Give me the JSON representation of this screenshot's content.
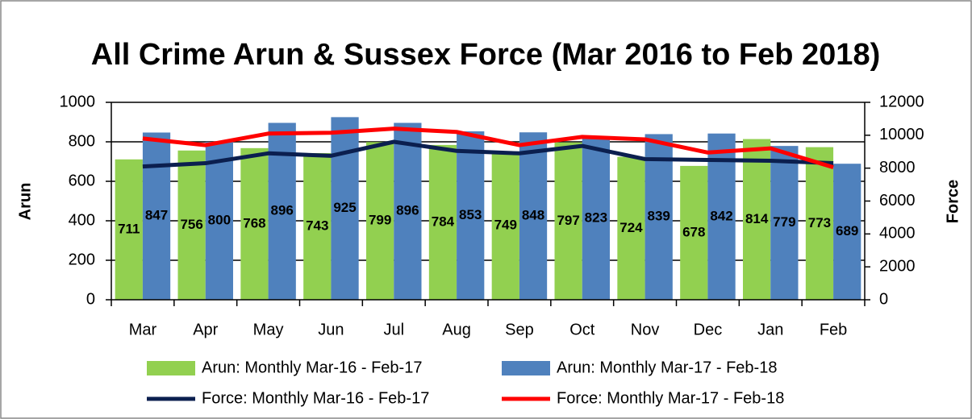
{
  "chart_data": {
    "type": "bar-line",
    "title": "All Crime Arun & Sussex Force (Mar 2016 to Feb 2018)",
    "y_label": "Arun",
    "y2_label": "Force",
    "categories": [
      "Mar",
      "Apr",
      "May",
      "Jun",
      "Jul",
      "Aug",
      "Sep",
      "Oct",
      "Nov",
      "Dec",
      "Jan",
      "Feb"
    ],
    "series": [
      {
        "name": "Arun: Monthly Mar-16 - Feb-17",
        "type": "bar",
        "color": "#92d050",
        "label_color": "#000000",
        "values": [
          711,
          756,
          768,
          743,
          799,
          784,
          749,
          797,
          724,
          678,
          814,
          773
        ]
      },
      {
        "name": "Arun: Monthly Mar-17 - Feb-18",
        "type": "bar",
        "color": "#4f81bd",
        "label_color": "#ffffff",
        "values": [
          847,
          800,
          896,
          925,
          896,
          853,
          848,
          823,
          839,
          842,
          779,
          689
        ]
      },
      {
        "name": "Force: Monthly Mar-16 - Feb-17",
        "type": "line",
        "axis": "y2",
        "color": "#0b1f4f",
        "values": [
          8100,
          8300,
          8900,
          8750,
          9600,
          9050,
          8900,
          9350,
          8550,
          8500,
          8450,
          8300
        ]
      },
      {
        "name": "Force: Monthly Mar-17 - Feb-18",
        "type": "line",
        "axis": "y2",
        "color": "#ff0000",
        "values": [
          9800,
          9400,
          10100,
          10150,
          10400,
          10200,
          9400,
          9900,
          9750,
          8950,
          9200,
          8050
        ]
      }
    ],
    "ylim": [
      0,
      1000
    ],
    "yticks": [
      0,
      200,
      400,
      600,
      800,
      1000
    ],
    "y2lim": [
      0,
      12000
    ],
    "y2ticks": [
      0,
      2000,
      4000,
      6000,
      8000,
      10000,
      12000
    ],
    "grid": true,
    "legend": "bottom"
  }
}
